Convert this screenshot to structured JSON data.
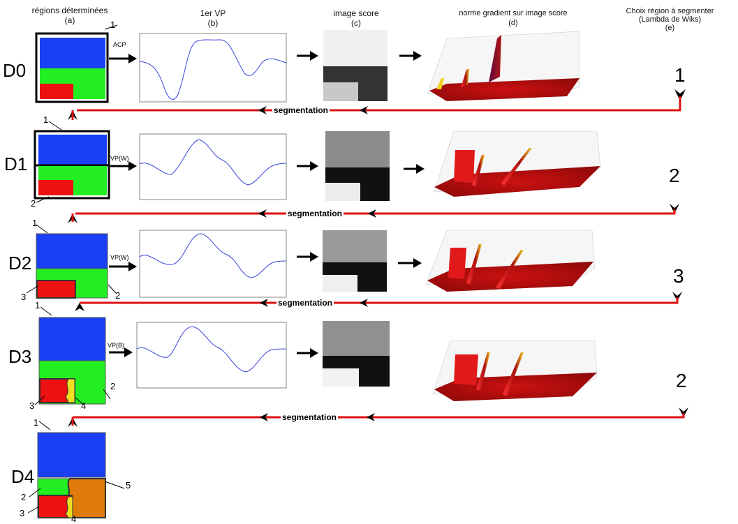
{
  "headers": {
    "a_title": "régions déterminées",
    "a_letter": "(a)",
    "b_title": "1er VP",
    "b_letter": "(b)",
    "c_title": "image score",
    "c_letter": "(c)",
    "d_title": "norme gradient sur image score",
    "d_letter": "(d)",
    "e_title": "Choix région à segmenter",
    "e_sub": "(Lambda de Wiks)",
    "e_letter": "(e)"
  },
  "stages": [
    {
      "label": "D0",
      "method": "ACP",
      "choice": "1",
      "segmentation": "segmentation",
      "region_labels": [
        "1"
      ]
    },
    {
      "label": "D1",
      "method": "VP(W)",
      "choice": "2",
      "segmentation": "segmentation",
      "region_labels": [
        "1",
        "2"
      ]
    },
    {
      "label": "D2",
      "method": "VP(W)",
      "choice": "3",
      "segmentation": "segmentation",
      "region_labels": [
        "1",
        "2",
        "3"
      ]
    },
    {
      "label": "D3",
      "method": "VP(B)",
      "choice": "2",
      "segmentation": "segmentation",
      "region_labels": [
        "1",
        "2",
        "3",
        "4"
      ]
    },
    {
      "label": "D4",
      "region_labels": [
        "1",
        "2",
        "3",
        "4",
        "5"
      ]
    }
  ],
  "colors": {
    "blue": "#1a3ff5",
    "green": "#22ee22",
    "red": "#ee1111",
    "orange": "#e07a0a",
    "yellow": "#f0e020",
    "arrow_red": "#dd1111",
    "curve": "#3344dd"
  }
}
